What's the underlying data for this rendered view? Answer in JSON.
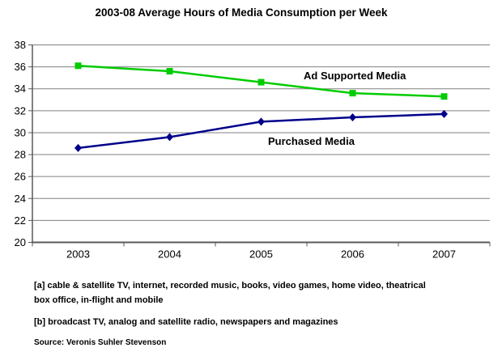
{
  "title": "2003-08 Average Hours of Media Consumption per Week",
  "chart_data": {
    "type": "line",
    "categories": [
      "2003",
      "2004",
      "2005",
      "2006",
      "2007"
    ],
    "series": [
      {
        "name": "Ad Supported Media",
        "values": [
          36.1,
          35.6,
          34.6,
          33.6,
          33.3
        ],
        "color": "#00CC00",
        "marker": "square"
      },
      {
        "name": "Purchased Media",
        "values": [
          28.6,
          29.6,
          31.0,
          31.4,
          31.7
        ],
        "color": "#00008B",
        "marker": "diamond"
      }
    ],
    "ylim": [
      20,
      38
    ],
    "ytick_step": 2,
    "ytick_labels": [
      "20",
      "22",
      "24",
      "26",
      "28",
      "30",
      "32",
      "34",
      "36",
      "38"
    ],
    "xlabel": "",
    "ylabel": "",
    "grid": true,
    "legend_position": "inline-annotations"
  },
  "footnotes": [
    {
      "lines": [
        "[a] cable & satellite TV, internet, recorded music, books, video games, home video, theatrical",
        "box office, in-flight and mobile"
      ]
    },
    {
      "lines": [
        "[b] broadcast TV, analog and satellite radio, newspapers and magazines"
      ]
    }
  ],
  "source": "Source: Veronis Suhler Stevenson",
  "colors": {
    "ad_supported": "#00CC00",
    "purchased": "#00008B",
    "gridline": "#808080",
    "axis": "#595959",
    "text": "#000000",
    "background": "#FFFFFF"
  }
}
